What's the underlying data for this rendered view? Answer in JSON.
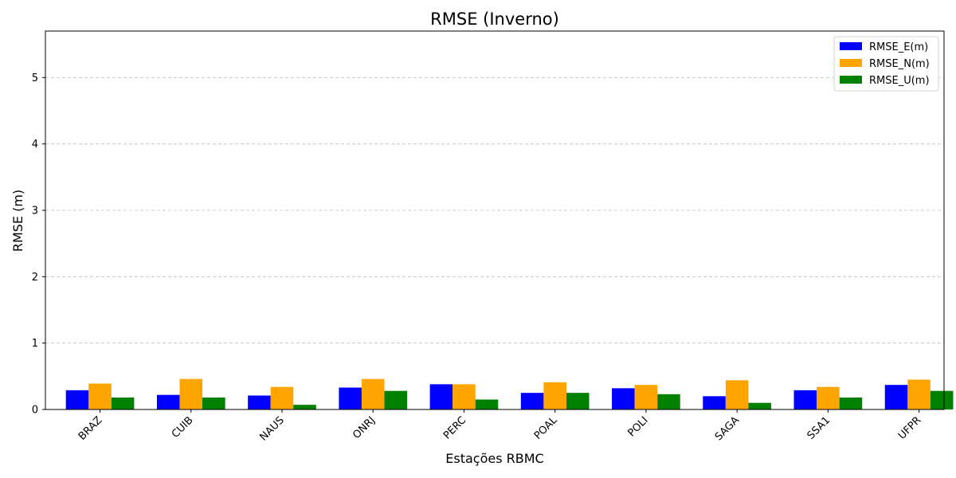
{
  "chart_data": {
    "type": "bar",
    "title": "RMSE (Inverno)",
    "xlabel": "Estações RBMC",
    "ylabel": "RMSE (m)",
    "categories": [
      "BRAZ",
      "CUIB",
      "NAUS",
      "ONRJ",
      "PERC",
      "POAL",
      "POLI",
      "SAGA",
      "SSA1",
      "UFPR"
    ],
    "series": [
      {
        "name": "RMSE_E(m)",
        "color": "#0000ff",
        "values": [
          0.29,
          0.22,
          0.21,
          0.33,
          0.38,
          0.25,
          0.32,
          0.2,
          0.29,
          0.37
        ]
      },
      {
        "name": "RMSE_N(m)",
        "color": "#ffa500",
        "values": [
          0.39,
          0.46,
          0.34,
          0.46,
          0.38,
          0.41,
          0.37,
          0.44,
          0.34,
          0.45
        ]
      },
      {
        "name": "RMSE_U(m)",
        "color": "#008000",
        "values": [
          0.18,
          0.18,
          0.07,
          0.28,
          0.15,
          0.25,
          0.23,
          0.1,
          0.18,
          0.28
        ]
      }
    ],
    "ylim": [
      0,
      5.7
    ],
    "yticks": [
      0,
      1,
      2,
      3,
      4,
      5
    ],
    "grid": "y-dashed",
    "legend": "top-right",
    "xtick_rotation": 45
  }
}
